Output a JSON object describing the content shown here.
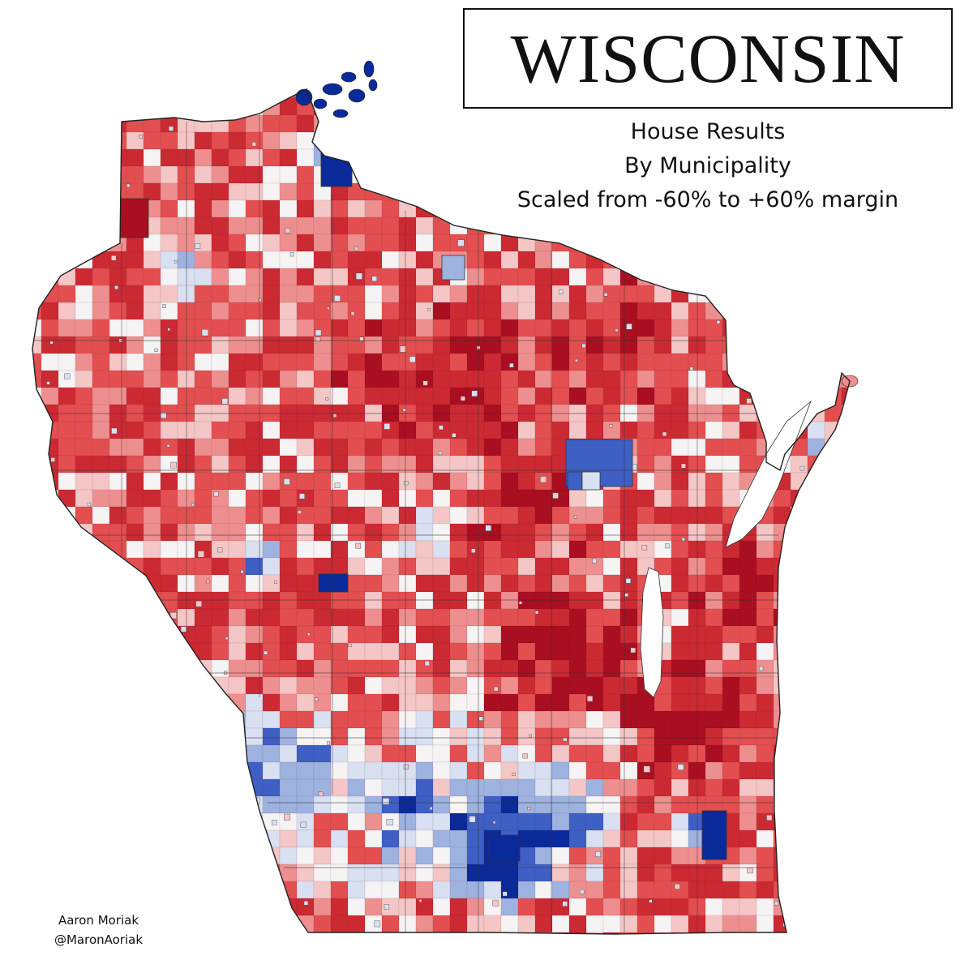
{
  "map": {
    "title": "WISCONSIN",
    "subtitle_lines": [
      "House Results",
      "By Municipality",
      "Scaled from -60% to +60% margin"
    ],
    "credit_name": "Aaron Moriak",
    "credit_handle": "@MaronAoriak"
  },
  "colors": {
    "dem_strong": "#0a2a9a",
    "dem_mid": "#3e5fc4",
    "dem_light": "#9eb2e0",
    "dem_faint": "#d8e0f1",
    "tossup": "#f6f3f4",
    "rep_faint": "#f4c6c6",
    "rep_light": "#ee8f8f",
    "rep_mid": "#e34f50",
    "rep_strong": "#cc2a33",
    "rep_deep": "#a90f20",
    "lake": "#ffffff",
    "border": "#333333"
  }
}
